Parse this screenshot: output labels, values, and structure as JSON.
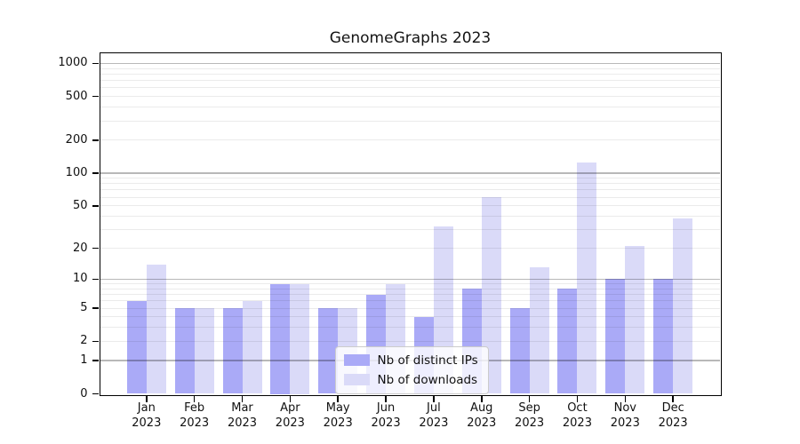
{
  "title": "GenomeGraphs 2023",
  "chart_data": {
    "type": "bar",
    "title": "GenomeGraphs 2023",
    "categories": [
      "Jan",
      "Feb",
      "Mar",
      "Apr",
      "May",
      "Jun",
      "Jul",
      "Aug",
      "Sep",
      "Oct",
      "Nov",
      "Dec"
    ],
    "category_year": "2023",
    "series": [
      {
        "name": "Nb of distinct IPs",
        "color": "#aaaaf7",
        "values": [
          6,
          5,
          5,
          9,
          5,
          7,
          4,
          8,
          5,
          8,
          10,
          10
        ]
      },
      {
        "name": "Nb of downloads",
        "color": "#dadaf8",
        "values": [
          14,
          5,
          6,
          9,
          5,
          9,
          32,
          60,
          13,
          125,
          21,
          38
        ]
      }
    ],
    "xlabel": "",
    "ylabel": "",
    "y_axis": {
      "scale": "log10(1+x)",
      "ticks": [
        0,
        1,
        2,
        5,
        10,
        20,
        50,
        100,
        200,
        500,
        1000
      ],
      "major_gridlines": [
        1,
        10,
        100,
        1000
      ],
      "ylim_top": 1280
    },
    "grid": true,
    "legend_position": "bottom-center"
  }
}
